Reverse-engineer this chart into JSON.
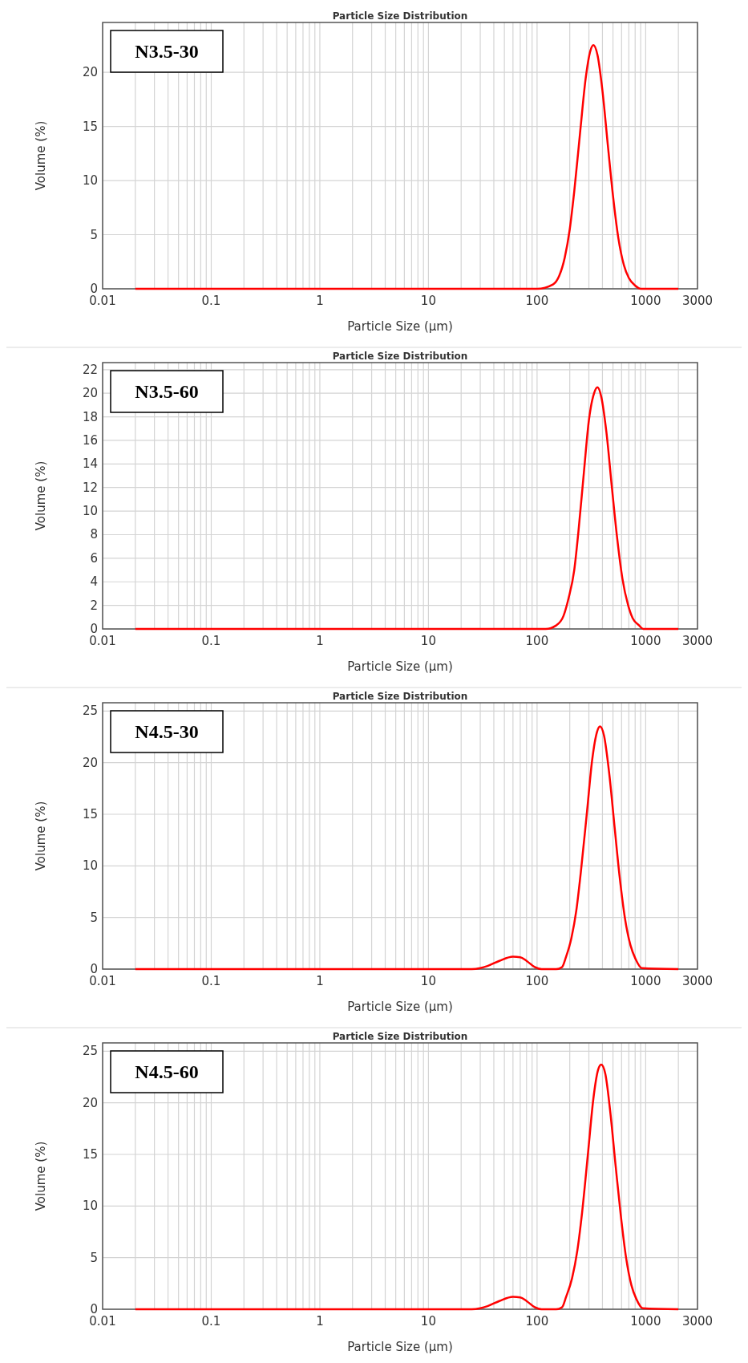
{
  "chart_data": [
    {
      "type": "line",
      "title": "Particle Size Distribution",
      "xlabel": "Particle Size (µm)",
      "ylabel": "Volume (%)",
      "annotations": [
        "N3.5-30"
      ],
      "log": "x",
      "grid": true,
      "marker": "none",
      "line_style": "solid",
      "xlim": [
        0.01,
        3000
      ],
      "ylim": [
        0,
        24.6
      ],
      "yticks": [
        0,
        5,
        10,
        15,
        20
      ],
      "xticks": [
        0.01,
        {
          "value": 0.02,
          "label": null
        },
        {
          "value": 0.03,
          "label": null
        },
        {
          "value": 0.04,
          "label": null
        },
        {
          "value": 0.05,
          "label": null
        },
        {
          "value": 0.06,
          "label": null
        },
        {
          "value": 0.07,
          "label": null
        },
        {
          "value": 0.08,
          "label": null
        },
        {
          "value": 0.09,
          "label": null
        },
        0.1,
        {
          "value": 0.2,
          "label": null
        },
        {
          "value": 0.3,
          "label": null
        },
        {
          "value": 0.4,
          "label": null
        },
        {
          "value": 0.5,
          "label": null
        },
        {
          "value": 0.6,
          "label": null
        },
        {
          "value": 0.7,
          "label": null
        },
        {
          "value": 0.8,
          "label": null
        },
        {
          "value": 0.9,
          "label": null
        },
        1,
        {
          "value": 2,
          "label": null
        },
        {
          "value": 3,
          "label": null
        },
        {
          "value": 4,
          "label": null
        },
        {
          "value": 5,
          "label": null
        },
        {
          "value": 6,
          "label": null
        },
        {
          "value": 7,
          "label": null
        },
        {
          "value": 8,
          "label": null
        },
        {
          "value": 9,
          "label": null
        },
        10,
        {
          "value": 20,
          "label": null
        },
        {
          "value": 30,
          "label": null
        },
        {
          "value": 40,
          "label": null
        },
        {
          "value": 50,
          "label": null
        },
        {
          "value": 60,
          "label": null
        },
        {
          "value": 70,
          "label": null
        },
        {
          "value": 80,
          "label": null
        },
        {
          "value": 90,
          "label": null
        },
        100,
        {
          "value": 200,
          "label": null
        },
        {
          "value": 300,
          "label": null
        },
        {
          "value": 400,
          "label": null
        },
        {
          "value": 500,
          "label": null
        },
        {
          "value": 600,
          "label": null
        },
        {
          "value": 700,
          "label": null
        },
        {
          "value": 800,
          "label": null
        },
        {
          "value": 900,
          "label": null
        },
        1000,
        {
          "value": 2000,
          "label": null
        },
        3000
      ],
      "series": [
        {
          "color": "#ff0000",
          "x": [
            0.02,
            100,
            140,
            160,
            180,
            200,
            220,
            250,
            280,
            310,
            330,
            360,
            400,
            450,
            500,
            560,
            630,
            700,
            800,
            900,
            2000
          ],
          "values": [
            0,
            0,
            0.4,
            1.2,
            2.9,
            5.5,
            9,
            14.6,
            19.4,
            22,
            22.5,
            21.6,
            18.3,
            13.1,
            8.6,
            4.7,
            2.2,
            1,
            0.3,
            0,
            0
          ]
        }
      ]
    },
    {
      "type": "line",
      "title": "Particle Size Distribution",
      "xlabel": "Particle Size (µm)",
      "ylabel": "Volume (%)",
      "annotations": [
        "N3.5-60"
      ],
      "log": "x",
      "grid": true,
      "marker": "none",
      "line_style": "solid",
      "xlim": [
        0.01,
        3000
      ],
      "ylim": [
        0,
        22.6
      ],
      "yticks": [
        0,
        2,
        4,
        6,
        8,
        10,
        12,
        14,
        16,
        18,
        20,
        22
      ],
      "xticks": [
        0.01,
        {
          "value": 0.02,
          "label": null
        },
        {
          "value": 0.03,
          "label": null
        },
        {
          "value": 0.04,
          "label": null
        },
        {
          "value": 0.05,
          "label": null
        },
        {
          "value": 0.06,
          "label": null
        },
        {
          "value": 0.07,
          "label": null
        },
        {
          "value": 0.08,
          "label": null
        },
        {
          "value": 0.09,
          "label": null
        },
        0.1,
        {
          "value": 0.2,
          "label": null
        },
        {
          "value": 0.3,
          "label": null
        },
        {
          "value": 0.4,
          "label": null
        },
        {
          "value": 0.5,
          "label": null
        },
        {
          "value": 0.6,
          "label": null
        },
        {
          "value": 0.7,
          "label": null
        },
        {
          "value": 0.8,
          "label": null
        },
        {
          "value": 0.9,
          "label": null
        },
        1,
        {
          "value": 2,
          "label": null
        },
        {
          "value": 3,
          "label": null
        },
        {
          "value": 4,
          "label": null
        },
        {
          "value": 5,
          "label": null
        },
        {
          "value": 6,
          "label": null
        },
        {
          "value": 7,
          "label": null
        },
        {
          "value": 8,
          "label": null
        },
        {
          "value": 9,
          "label": null
        },
        10,
        {
          "value": 20,
          "label": null
        },
        {
          "value": 30,
          "label": null
        },
        {
          "value": 40,
          "label": null
        },
        {
          "value": 50,
          "label": null
        },
        {
          "value": 60,
          "label": null
        },
        {
          "value": 70,
          "label": null
        },
        {
          "value": 80,
          "label": null
        },
        {
          "value": 90,
          "label": null
        },
        100,
        {
          "value": 200,
          "label": null
        },
        {
          "value": 300,
          "label": null
        },
        {
          "value": 400,
          "label": null
        },
        {
          "value": 500,
          "label": null
        },
        {
          "value": 600,
          "label": null
        },
        {
          "value": 700,
          "label": null
        },
        {
          "value": 800,
          "label": null
        },
        {
          "value": 900,
          "label": null
        },
        1000,
        {
          "value": 2000,
          "label": null
        },
        3000
      ],
      "series": [
        {
          "color": "#ff0000",
          "x": [
            0.02,
            120,
            150,
            175,
            195,
            220,
            240,
            270,
            300,
            335,
            360,
            390,
            435,
            490,
            545,
            610,
            690,
            760,
            870,
            950,
            2000
          ],
          "values": [
            0,
            0,
            0.3,
            1.1,
            2.6,
            5,
            8.2,
            13.3,
            17.7,
            20,
            20.5,
            19.7,
            16.7,
            11.9,
            7.8,
            4.3,
            2,
            0.9,
            0.3,
            0,
            0
          ]
        }
      ]
    },
    {
      "type": "line",
      "title": "Particle Size Distribution",
      "xlabel": "Particle Size (µm)",
      "ylabel": "Volume (%)",
      "annotations": [
        "N4.5-30"
      ],
      "log": "x",
      "grid": true,
      "marker": "none",
      "line_style": "solid",
      "xlim": [
        0.01,
        3000
      ],
      "ylim": [
        0,
        25.8
      ],
      "yticks": [
        0,
        5,
        10,
        15,
        20,
        25
      ],
      "xticks": [
        0.01,
        {
          "value": 0.02,
          "label": null
        },
        {
          "value": 0.03,
          "label": null
        },
        {
          "value": 0.04,
          "label": null
        },
        {
          "value": 0.05,
          "label": null
        },
        {
          "value": 0.06,
          "label": null
        },
        {
          "value": 0.07,
          "label": null
        },
        {
          "value": 0.08,
          "label": null
        },
        {
          "value": 0.09,
          "label": null
        },
        0.1,
        {
          "value": 0.2,
          "label": null
        },
        {
          "value": 0.3,
          "label": null
        },
        {
          "value": 0.4,
          "label": null
        },
        {
          "value": 0.5,
          "label": null
        },
        {
          "value": 0.6,
          "label": null
        },
        {
          "value": 0.7,
          "label": null
        },
        {
          "value": 0.8,
          "label": null
        },
        {
          "value": 0.9,
          "label": null
        },
        1,
        {
          "value": 2,
          "label": null
        },
        {
          "value": 3,
          "label": null
        },
        {
          "value": 4,
          "label": null
        },
        {
          "value": 5,
          "label": null
        },
        {
          "value": 6,
          "label": null
        },
        {
          "value": 7,
          "label": null
        },
        {
          "value": 8,
          "label": null
        },
        {
          "value": 9,
          "label": null
        },
        10,
        {
          "value": 20,
          "label": null
        },
        {
          "value": 30,
          "label": null
        },
        {
          "value": 40,
          "label": null
        },
        {
          "value": 50,
          "label": null
        },
        {
          "value": 60,
          "label": null
        },
        {
          "value": 70,
          "label": null
        },
        {
          "value": 80,
          "label": null
        },
        {
          "value": 90,
          "label": null
        },
        100,
        {
          "value": 200,
          "label": null
        },
        {
          "value": 300,
          "label": null
        },
        {
          "value": 400,
          "label": null
        },
        {
          "value": 500,
          "label": null
        },
        {
          "value": 600,
          "label": null
        },
        {
          "value": 700,
          "label": null
        },
        {
          "value": 800,
          "label": null
        },
        {
          "value": 900,
          "label": null
        },
        1000,
        {
          "value": 2000,
          "label": null
        },
        3000
      ],
      "series": [
        {
          "color": "#ff0000",
          "x": [
            0.02,
            25,
            30,
            35,
            45,
            60,
            70,
            80,
            95,
            110,
            150,
            170,
            185,
            207,
            230,
            253,
            288,
            322,
            357,
            380,
            414,
            460,
            518,
            575,
            645,
            725,
            805,
            920,
            2000
          ],
          "values": [
            0,
            0,
            0.1,
            0.3,
            0.8,
            1.2,
            1.15,
            0.8,
            0.2,
            0,
            0,
            0.2,
            1.2,
            3,
            5.7,
            9.4,
            15.2,
            20.3,
            23,
            23.5,
            22.6,
            19.1,
            13.7,
            9,
            4.9,
            2.3,
            1,
            0.1,
            0
          ]
        }
      ]
    },
    {
      "type": "line",
      "title": "Particle Size Distribution",
      "xlabel": "Particle Size (µm)",
      "ylabel": "Volume (%)",
      "annotations": [
        "N4.5-60"
      ],
      "log": "x",
      "grid": true,
      "marker": "none",
      "line_style": "solid",
      "xlim": [
        0.01,
        3000
      ],
      "ylim": [
        0,
        25.8
      ],
      "yticks": [
        0,
        5,
        10,
        15,
        20,
        25
      ],
      "xticks": [
        0.01,
        {
          "value": 0.02,
          "label": null
        },
        {
          "value": 0.03,
          "label": null
        },
        {
          "value": 0.04,
          "label": null
        },
        {
          "value": 0.05,
          "label": null
        },
        {
          "value": 0.06,
          "label": null
        },
        {
          "value": 0.07,
          "label": null
        },
        {
          "value": 0.08,
          "label": null
        },
        {
          "value": 0.09,
          "label": null
        },
        0.1,
        {
          "value": 0.2,
          "label": null
        },
        {
          "value": 0.3,
          "label": null
        },
        {
          "value": 0.4,
          "label": null
        },
        {
          "value": 0.5,
          "label": null
        },
        {
          "value": 0.6,
          "label": null
        },
        {
          "value": 0.7,
          "label": null
        },
        {
          "value": 0.8,
          "label": null
        },
        {
          "value": 0.9,
          "label": null
        },
        1,
        {
          "value": 2,
          "label": null
        },
        {
          "value": 3,
          "label": null
        },
        {
          "value": 4,
          "label": null
        },
        {
          "value": 5,
          "label": null
        },
        {
          "value": 6,
          "label": null
        },
        {
          "value": 7,
          "label": null
        },
        {
          "value": 8,
          "label": null
        },
        {
          "value": 9,
          "label": null
        },
        10,
        {
          "value": 20,
          "label": null
        },
        {
          "value": 30,
          "label": null
        },
        {
          "value": 40,
          "label": null
        },
        {
          "value": 50,
          "label": null
        },
        {
          "value": 60,
          "label": null
        },
        {
          "value": 70,
          "label": null
        },
        {
          "value": 80,
          "label": null
        },
        {
          "value": 90,
          "label": null
        },
        100,
        {
          "value": 200,
          "label": null
        },
        {
          "value": 300,
          "label": null
        },
        {
          "value": 400,
          "label": null
        },
        {
          "value": 500,
          "label": null
        },
        {
          "value": 600,
          "label": null
        },
        {
          "value": 700,
          "label": null
        },
        {
          "value": 800,
          "label": null
        },
        {
          "value": 900,
          "label": null
        },
        1000,
        {
          "value": 2000,
          "label": null
        },
        3000
      ],
      "series": [
        {
          "color": "#ff0000",
          "x": [
            0.02,
            25,
            30,
            35,
            45,
            60,
            70,
            80,
            95,
            110,
            150,
            170,
            185,
            210,
            235,
            260,
            295,
            330,
            365,
            390,
            425,
            470,
            530,
            590,
            660,
            740,
            820,
            940,
            2000
          ],
          "values": [
            0,
            0,
            0.1,
            0.3,
            0.8,
            1.2,
            1.15,
            0.8,
            0.2,
            0,
            0,
            0.2,
            1.2,
            3,
            5.7,
            9.4,
            15.2,
            20.4,
            23.2,
            23.7,
            22.8,
            19.3,
            13.8,
            9.1,
            5,
            2.3,
            1,
            0.1,
            0
          ]
        }
      ]
    }
  ]
}
